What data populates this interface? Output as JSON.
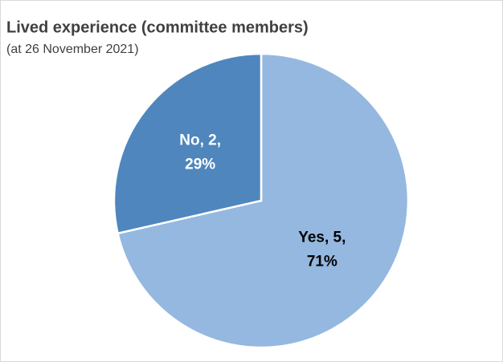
{
  "chart_data": {
    "type": "pie",
    "title": "Lived experience (committee members)",
    "subtitle": "(at 26 November 2021)",
    "categories": [
      "Yes",
      "No"
    ],
    "values": [
      5,
      2
    ],
    "value_labels": [
      [
        "Yes, 5,",
        "71%"
      ],
      [
        "No, 2,",
        "29%"
      ]
    ],
    "colors": [
      "#95b8e0",
      "#4f86bd"
    ],
    "label_colors": [
      "#000000",
      "#ffffff"
    ]
  }
}
